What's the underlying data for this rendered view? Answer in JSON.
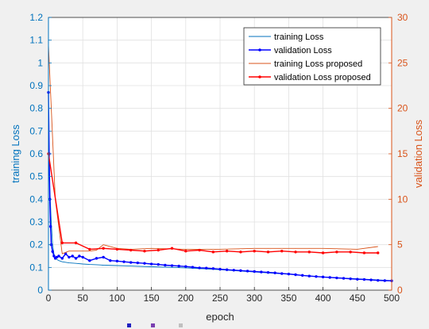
{
  "colors": {
    "left_axis": "#0072bd",
    "right_axis": "#d95319",
    "training_loss": "#0072bd",
    "validation_loss": "#0000ff",
    "training_loss_proposed": "#d95319",
    "validation_loss_proposed": "#ff0000",
    "grid": "#e1e1e1",
    "figure_bg": "#f0f0f0",
    "axes_bg": "#ffffff"
  },
  "chart_data": {
    "type": "line",
    "title": "",
    "xlabel": "epoch",
    "ylabel_left": "training Loss",
    "ylabel_right": "validation Loss",
    "xlim": [
      0,
      500
    ],
    "ylim_left": [
      0,
      1.2
    ],
    "ylim_right": [
      0,
      30
    ],
    "grid": true,
    "legend_position": "top-right",
    "x_ticks": [
      "0",
      "50",
      "100",
      "150",
      "200",
      "250",
      "300",
      "350",
      "400",
      "450",
      "500"
    ],
    "y_left_ticks": [
      "0",
      "0.1",
      "0.2",
      "0.3",
      "0.4",
      "0.5",
      "0.6",
      "0.7",
      "0.8",
      "0.9",
      "1",
      "1.1",
      "1.2"
    ],
    "y_right_ticks": [
      "0",
      "5",
      "10",
      "15",
      "20",
      "25",
      "30"
    ],
    "series": [
      {
        "name": "training Loss",
        "axis": "left",
        "marker": "none",
        "x": [
          0,
          2,
          4,
          6,
          8,
          10,
          15,
          20,
          30,
          40,
          50,
          60,
          70,
          80,
          100,
          120,
          150,
          180,
          200,
          250,
          300,
          350,
          400,
          450,
          500
        ],
        "y": [
          0.62,
          0.45,
          0.3,
          0.2,
          0.16,
          0.14,
          0.13,
          0.125,
          0.12,
          0.118,
          0.115,
          0.113,
          0.112,
          0.11,
          0.108,
          0.106,
          0.103,
          0.1,
          0.098,
          0.09,
          0.08,
          0.07,
          0.058,
          0.05,
          0.042
        ]
      },
      {
        "name": "validation Loss",
        "axis": "left",
        "marker": "dot",
        "x": [
          0,
          1,
          2,
          3,
          4,
          6,
          8,
          10,
          12,
          15,
          20,
          25,
          30,
          35,
          40,
          45,
          50,
          60,
          70,
          80,
          90,
          100,
          110,
          120,
          130,
          140,
          150,
          160,
          170,
          180,
          190,
          200,
          210,
          220,
          230,
          240,
          250,
          260,
          270,
          280,
          290,
          300,
          310,
          320,
          330,
          340,
          350,
          360,
          370,
          380,
          390,
          400,
          410,
          420,
          430,
          440,
          450,
          460,
          470,
          480,
          490,
          500
        ],
        "y": [
          0.87,
          0.6,
          0.4,
          0.28,
          0.2,
          0.17,
          0.15,
          0.14,
          0.145,
          0.15,
          0.14,
          0.16,
          0.145,
          0.15,
          0.14,
          0.15,
          0.145,
          0.13,
          0.14,
          0.145,
          0.13,
          0.128,
          0.125,
          0.122,
          0.12,
          0.118,
          0.115,
          0.113,
          0.11,
          0.108,
          0.106,
          0.104,
          0.101,
          0.098,
          0.097,
          0.095,
          0.092,
          0.09,
          0.088,
          0.086,
          0.084,
          0.082,
          0.08,
          0.078,
          0.076,
          0.073,
          0.071,
          0.068,
          0.065,
          0.062,
          0.06,
          0.058,
          0.056,
          0.054,
          0.052,
          0.05,
          0.048,
          0.047,
          0.045,
          0.043,
          0.042,
          0.041
        ]
      },
      {
        "name": "training Loss proposed",
        "axis": "right",
        "marker": "none",
        "x": [
          0,
          10,
          20,
          30,
          40,
          60,
          70,
          80,
          100,
          120,
          150,
          200,
          250,
          300,
          350,
          400,
          450,
          480
        ],
        "y": [
          27,
          10,
          4,
          4.3,
          4.3,
          4.3,
          4.4,
          5,
          4.6,
          4.5,
          4.6,
          4.5,
          4.5,
          4.6,
          4.6,
          4.6,
          4.5,
          4.8
        ]
      },
      {
        "name": "validation Loss proposed",
        "axis": "right",
        "marker": "dot",
        "x": [
          0,
          20,
          40,
          60,
          80,
          100,
          120,
          140,
          160,
          180,
          200,
          220,
          240,
          260,
          280,
          300,
          320,
          340,
          360,
          380,
          400,
          420,
          440,
          460,
          480
        ],
        "y": [
          15,
          5.2,
          5.2,
          4.5,
          4.6,
          4.5,
          4.4,
          4.3,
          4.4,
          4.6,
          4.3,
          4.4,
          4.2,
          4.3,
          4.2,
          4.3,
          4.2,
          4.3,
          4.2,
          4.2,
          4.1,
          4.2,
          4.2,
          4.1,
          4.1
        ]
      }
    ]
  }
}
